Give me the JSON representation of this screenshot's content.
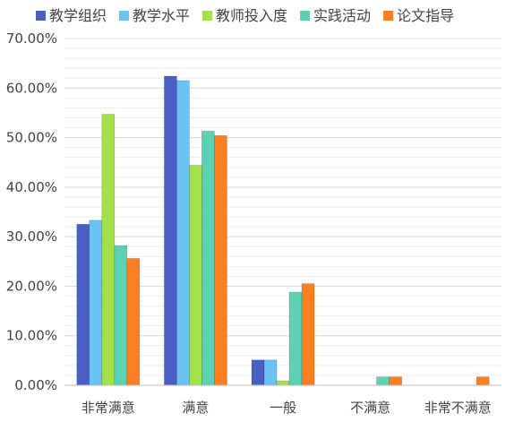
{
  "chart_data": {
    "type": "bar",
    "categories": [
      "非常满意",
      "满意",
      "一般",
      "不满意",
      "非常不满意"
    ],
    "series": [
      {
        "name": "教学组织",
        "color": "#4a5fc1",
        "values": [
          32.5,
          62.4,
          5.1,
          0,
          0
        ]
      },
      {
        "name": "教学水平",
        "color": "#6bc3f2",
        "values": [
          33.3,
          61.5,
          5.1,
          0,
          0
        ]
      },
      {
        "name": "教师投入度",
        "color": "#a3e04c",
        "values": [
          54.7,
          44.4,
          0.9,
          0,
          0
        ]
      },
      {
        "name": "实践活动",
        "color": "#5dd1b3",
        "values": [
          28.2,
          51.3,
          18.8,
          1.7,
          0
        ]
      },
      {
        "name": "论文指导",
        "color": "#fa7f22",
        "values": [
          25.6,
          50.4,
          20.5,
          1.7,
          1.7
        ]
      }
    ],
    "y_ticks": [
      "0.00%",
      "10.00%",
      "20.00%",
      "30.00%",
      "40.00%",
      "50.00%",
      "60.00%",
      "70.00%"
    ],
    "ylim": [
      0,
      70
    ],
    "legend_position": "top",
    "grid": true
  }
}
